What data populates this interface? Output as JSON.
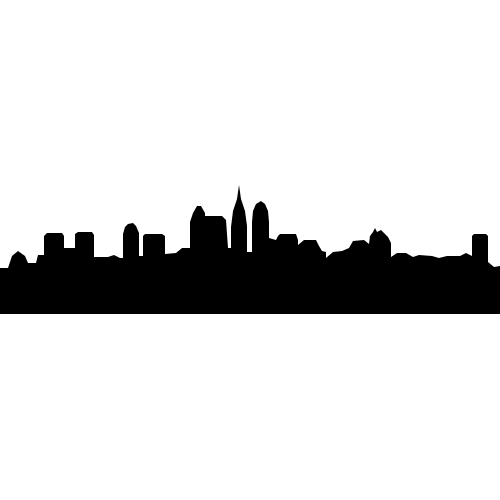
{
  "colors": {
    "background": "#ffffff",
    "silhouette": "#000000"
  }
}
